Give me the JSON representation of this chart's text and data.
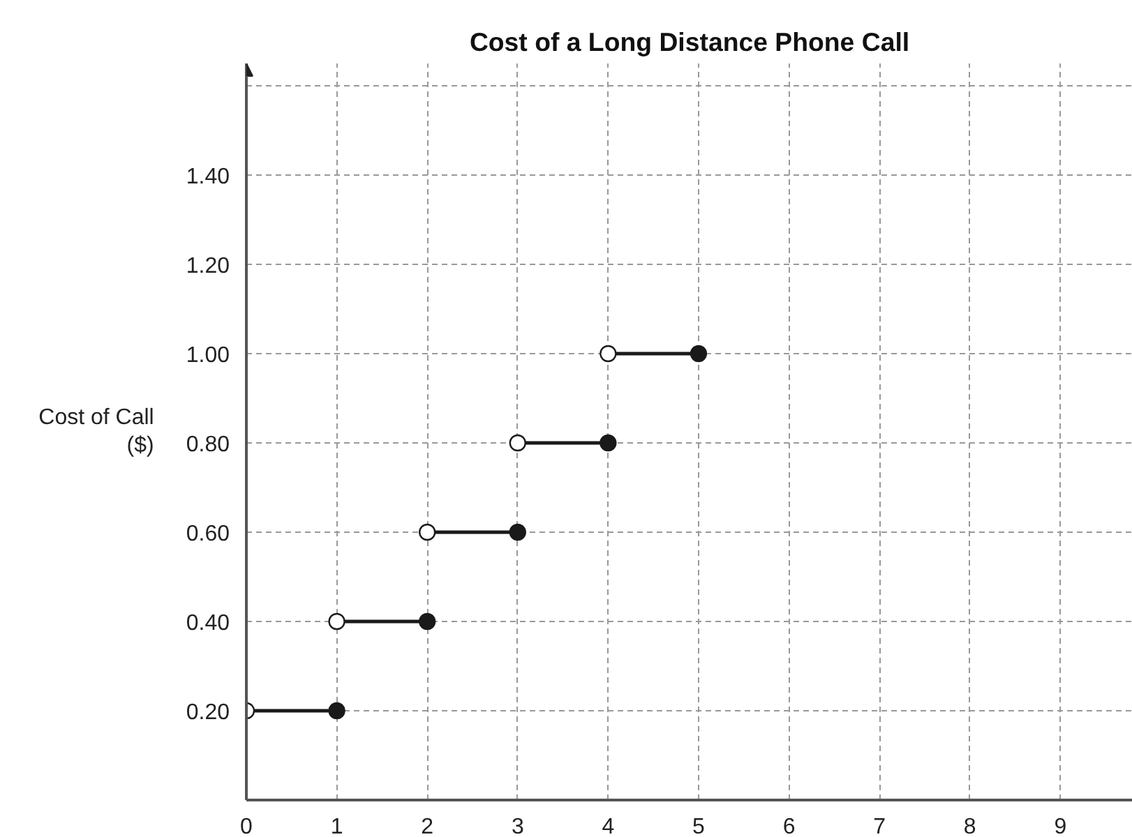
{
  "chart_data": {
    "type": "line",
    "title": "Cost of a Long Distance Phone Call",
    "ylabel": "Cost of Call\n($)",
    "series": [
      {
        "color": "#1a1a1a",
        "x": [
          0,
          1,
          null,
          1,
          2,
          null,
          2,
          3,
          null,
          3,
          4,
          null,
          4,
          5
        ],
        "values": [
          0.2,
          0.2,
          null,
          0.4,
          0.4,
          null,
          0.6,
          0.6,
          null,
          0.8,
          0.8,
          null,
          1.0,
          1.0
        ]
      },
      {
        "type": "scatter",
        "color": "#ffffff",
        "marker": "circle",
        "x": [
          0,
          1,
          2,
          3,
          4
        ],
        "values": [
          0.2,
          0.4,
          0.6,
          0.8,
          1.0
        ]
      },
      {
        "type": "scatter",
        "color": "#1a1a1a",
        "marker": "circle",
        "x": [
          1,
          2,
          3,
          4,
          5
        ],
        "values": [
          0.2,
          0.4,
          0.6,
          0.8,
          1.0
        ]
      }
    ],
    "xlim": [
      0,
      9.8
    ],
    "ylim": [
      0,
      1.65
    ],
    "xticks": [
      0,
      1,
      2,
      3,
      4,
      5,
      6,
      7,
      8,
      9
    ],
    "yticks": [
      {
        "value": 0.2,
        "label": "0.20"
      },
      {
        "value": 0.4,
        "label": "0.40"
      },
      {
        "value": 0.6,
        "label": "0.60"
      },
      {
        "value": 0.8,
        "label": "0.80"
      },
      {
        "value": 1.0,
        "label": "1.00"
      },
      {
        "value": 1.2,
        "label": "1.20"
      },
      {
        "value": 1.4,
        "label": "1.40"
      },
      {
        "value": 1.6,
        "label": null
      }
    ],
    "grid": true,
    "line_style": "solid"
  }
}
